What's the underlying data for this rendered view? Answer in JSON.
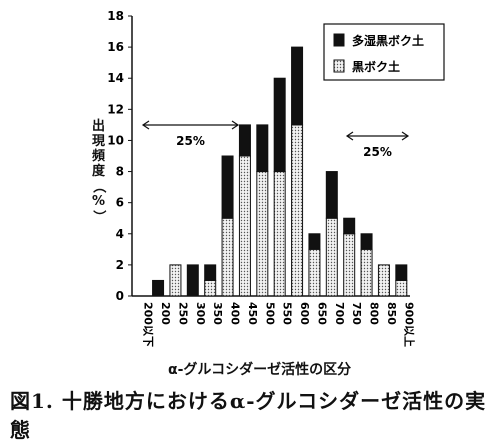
{
  "figure": {
    "caption": "図1. 十勝地方におけるα-グルコシダーゼ活性の実態"
  },
  "chart_data": {
    "type": "bar",
    "stacked": true,
    "categories": [
      "200以下",
      "200",
      "250",
      "300",
      "350",
      "400",
      "450",
      "500",
      "550",
      "600",
      "650",
      "700",
      "750",
      "800",
      "850",
      "900以上"
    ],
    "series": [
      {
        "name": "黒ボク土",
        "values": [
          0,
          0,
          2,
          0,
          1,
          5,
          9,
          8,
          8,
          11,
          3,
          5,
          4,
          3,
          2,
          1
        ],
        "color": "#e9e9e9",
        "pattern": "dotted"
      },
      {
        "name": "多湿黒ボク土",
        "values": [
          0,
          1,
          0,
          2,
          1,
          4,
          2,
          3,
          6,
          5,
          1,
          3,
          1,
          1,
          0,
          1
        ],
        "color": "#111111",
        "pattern": "solid"
      }
    ],
    "xlabel": "α-グルコシダーゼ活性の区分",
    "ylabel": "出現頻度（%）",
    "ylim": [
      0,
      18
    ],
    "yticks": [
      0,
      2,
      4,
      6,
      8,
      10,
      12,
      14,
      16,
      18
    ],
    "legend": {
      "placement": "top-right",
      "entries": [
        "多湿黒ボク土",
        "黒ボク土"
      ]
    },
    "annotations": [
      {
        "text": "25%",
        "range": "200以下-400"
      },
      {
        "text": "25%",
        "range": "700-900以上"
      }
    ],
    "grid": false
  }
}
